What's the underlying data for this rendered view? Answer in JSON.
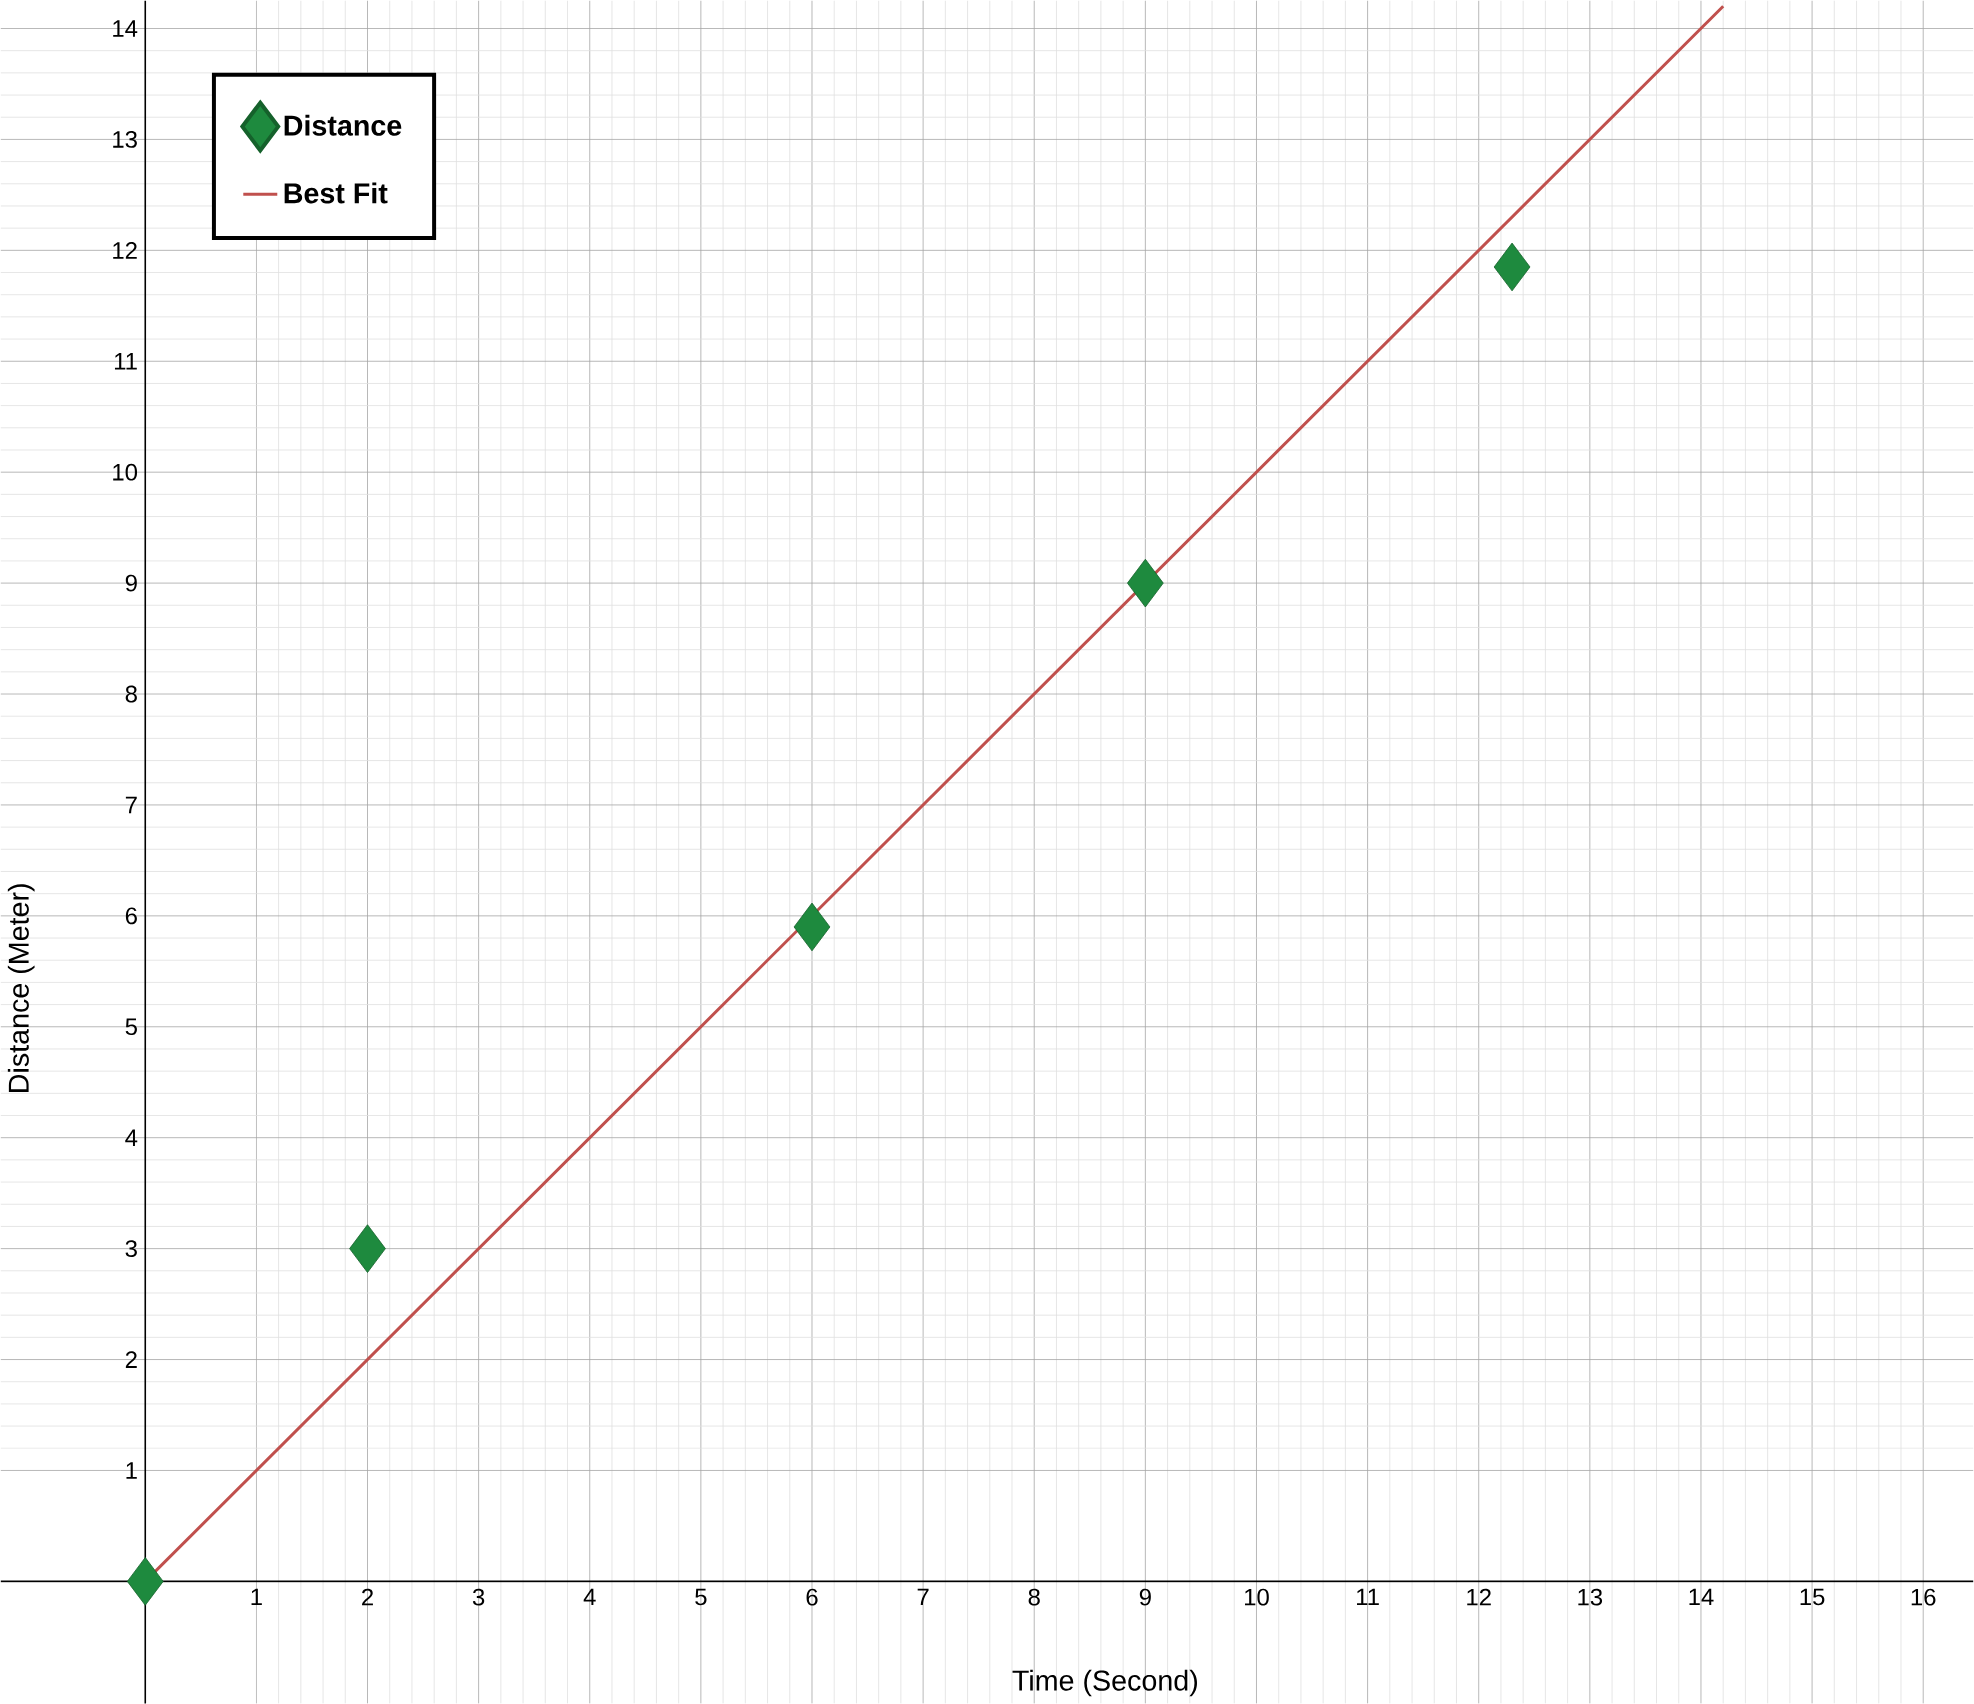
{
  "chart_data": {
    "type": "scatter",
    "xlabel": "Time (Second)",
    "ylabel": "Distance (Meter)",
    "xlim": [
      -1.3,
      16.45
    ],
    "ylim": [
      -1.1,
      14.25
    ],
    "xticks": [
      1,
      2,
      3,
      4,
      5,
      6,
      7,
      8,
      9,
      10,
      11,
      12,
      13,
      14,
      15,
      16
    ],
    "yticks": [
      1,
      2,
      3,
      4,
      5,
      6,
      7,
      8,
      9,
      10,
      11,
      12,
      13,
      14
    ],
    "grid": true,
    "legend": "top left",
    "series": [
      {
        "name": "Distance",
        "marker": "diamond",
        "color": "#1e8a3e",
        "x": [
          0,
          2,
          6,
          9,
          12.3
        ],
        "values": [
          0,
          3,
          5.9,
          9,
          11.85
        ]
      },
      {
        "name": "Best Fit",
        "type": "line",
        "marker": "none",
        "line_style": "solid",
        "color": "#c0504d",
        "x": [
          0,
          14.2
        ],
        "values": [
          0,
          14.2
        ]
      }
    ]
  }
}
